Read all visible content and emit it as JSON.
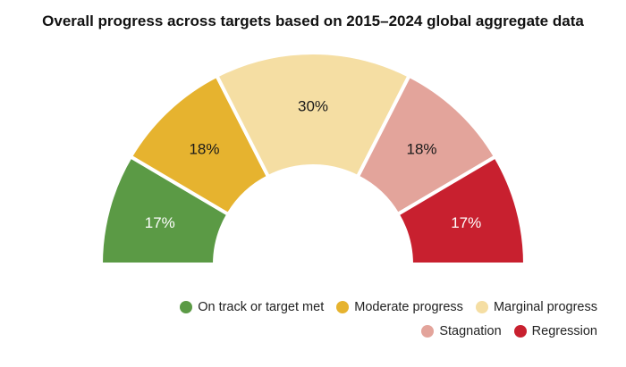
{
  "chart_data": {
    "type": "pie",
    "subtype": "half-donut",
    "title": "Overall progress across targets based on 2015–2024 global aggregate data",
    "categories": [
      "On track or target met",
      "Moderate progress",
      "Marginal progress",
      "Stagnation",
      "Regression"
    ],
    "values": [
      17,
      18,
      30,
      18,
      17
    ],
    "labels": [
      "17%",
      "18%",
      "30%",
      "18%",
      "17%"
    ],
    "colors": [
      "#5b9a45",
      "#e6b32f",
      "#f5dea3",
      "#e3a49b",
      "#c8202f"
    ],
    "legend_position": "bottom-right"
  }
}
